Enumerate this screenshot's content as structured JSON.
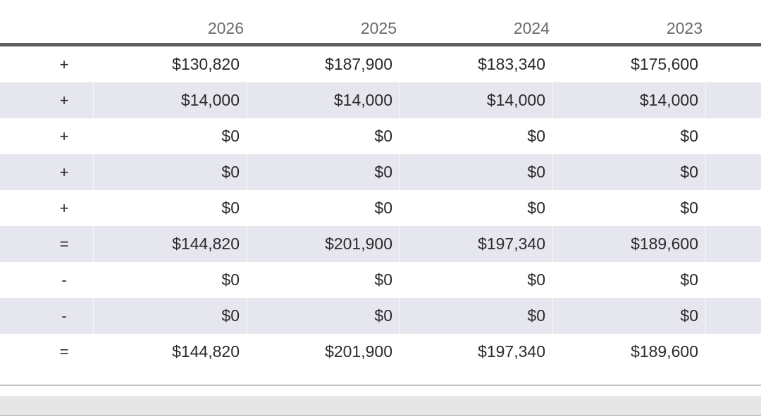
{
  "table": {
    "columns": [
      "2026",
      "2025",
      "2024",
      "2023"
    ],
    "rows": [
      {
        "op": "+",
        "values": [
          "$130,820",
          "$187,900",
          "$183,340",
          "$175,600"
        ]
      },
      {
        "op": "+",
        "values": [
          "$14,000",
          "$14,000",
          "$14,000",
          "$14,000"
        ]
      },
      {
        "op": "+",
        "values": [
          "$0",
          "$0",
          "$0",
          "$0"
        ]
      },
      {
        "op": "+",
        "values": [
          "$0",
          "$0",
          "$0",
          "$0"
        ]
      },
      {
        "op": "+",
        "values": [
          "$0",
          "$0",
          "$0",
          "$0"
        ]
      },
      {
        "op": "=",
        "values": [
          "$144,820",
          "$201,900",
          "$197,340",
          "$189,600"
        ]
      },
      {
        "op": "-",
        "values": [
          "$0",
          "$0",
          "$0",
          "$0"
        ]
      },
      {
        "op": "-",
        "values": [
          "$0",
          "$0",
          "$0",
          "$0"
        ]
      },
      {
        "op": "=",
        "values": [
          "$144,820",
          "$201,900",
          "$197,340",
          "$189,600"
        ]
      }
    ]
  },
  "colors": {
    "alt_row": "#e6e6ef",
    "header_rule": "#606060",
    "header_text": "#6b6b6b"
  }
}
